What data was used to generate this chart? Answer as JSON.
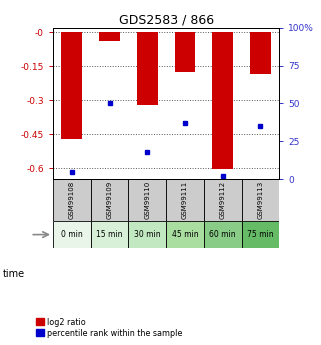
{
  "title": "GDS2583 / 866",
  "samples": [
    "GSM99108",
    "GSM99109",
    "GSM99110",
    "GSM99111",
    "GSM99112",
    "GSM99113"
  ],
  "time_labels": [
    "0 min",
    "15 min",
    "30 min",
    "45 min",
    "60 min",
    "75 min"
  ],
  "time_colors": [
    "#e8f5e8",
    "#d8f0d8",
    "#c2e8c2",
    "#aadea0",
    "#88cc88",
    "#66bb66"
  ],
  "log2_values": [
    -0.47,
    -0.04,
    -0.32,
    -0.175,
    -0.605,
    -0.185
  ],
  "percentile_values": [
    5,
    50,
    18,
    37,
    2,
    35
  ],
  "ylim_left": [
    -0.65,
    0.02
  ],
  "ylim_right": [
    0,
    100
  ],
  "yticks_left": [
    0.0,
    -0.15,
    -0.3,
    -0.45,
    -0.6
  ],
  "ytick_labels_left": [
    "-0",
    "-0.15",
    "-0.3",
    "-0.45",
    "-0.6"
  ],
  "yticks_right": [
    0,
    25,
    50,
    75,
    100
  ],
  "ytick_labels_right": [
    "0",
    "25",
    "50",
    "75",
    "100%"
  ],
  "bar_color": "#cc0000",
  "percentile_color": "#0000cc",
  "bar_width": 0.55,
  "legend_labels": [
    "log2 ratio",
    "percentile rank within the sample"
  ],
  "left_tick_color": "#cc0000",
  "right_tick_color": "#3333cc",
  "gsm_bg_color": "#cccccc",
  "gsm_fontsize": 5.0,
  "time_fontsize": 5.5,
  "title_fontsize": 9
}
